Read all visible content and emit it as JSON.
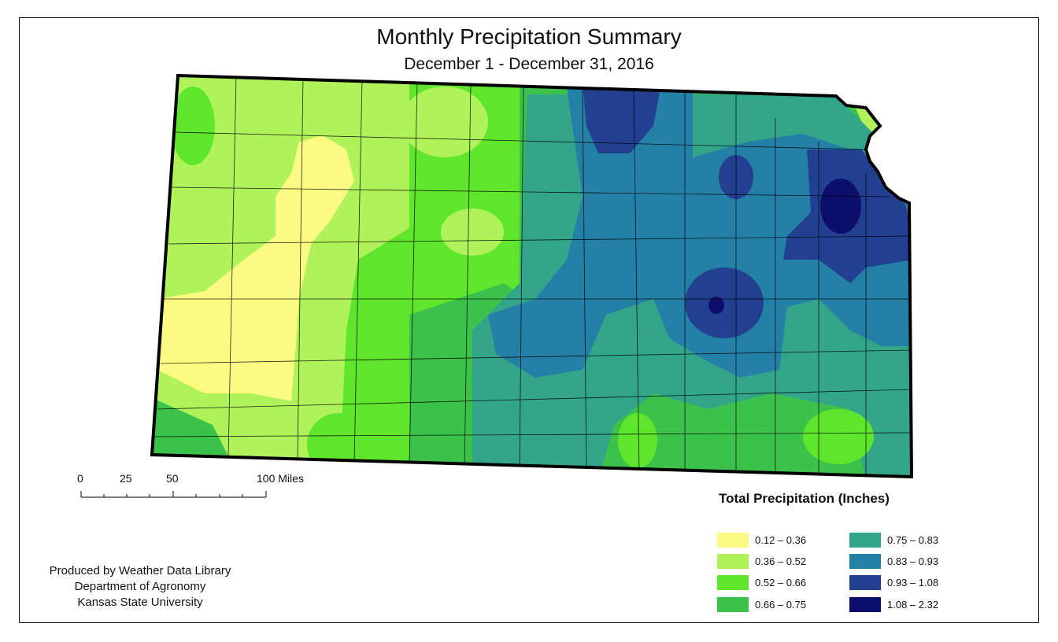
{
  "map": {
    "title": "Monthly Precipitation Summary",
    "subtitle": "December 1 - December 31, 2016",
    "state": "Kansas"
  },
  "scale_bar": {
    "labels": [
      "0",
      "25",
      "50",
      "100 Miles"
    ]
  },
  "legend": {
    "title": "Total Precipitation (Inches)",
    "items": [
      {
        "label": "0.12 – 0.36",
        "color": "#fbfb84"
      },
      {
        "label": "0.36 – 0.52",
        "color": "#b0f25a"
      },
      {
        "label": "0.52 – 0.66",
        "color": "#5ee52c"
      },
      {
        "label": "0.66 – 0.75",
        "color": "#3cc24a"
      },
      {
        "label": "0.75 – 0.83",
        "color": "#33a68a"
      },
      {
        "label": "0.83 – 0.93",
        "color": "#2580a8"
      },
      {
        "label": "0.93 – 1.08",
        "color": "#223f90"
      },
      {
        "label": "1.08 – 2.32",
        "color": "#0c0e6c"
      }
    ]
  },
  "credit": {
    "line1": "Produced by Weather Data Library",
    "line2": "Department of Agronomy",
    "line3": "Kansas State University"
  }
}
